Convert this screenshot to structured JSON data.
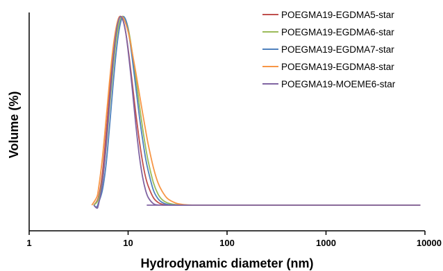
{
  "chart_data": {
    "type": "line",
    "xlabel": "Hydrodynamic diameter (nm)",
    "ylabel": "Volume (%)",
    "x_scale": "log",
    "xlim": [
      1,
      10000
    ],
    "x_ticks": [
      1,
      10,
      100,
      1000,
      10000
    ],
    "x_tick_labels": [
      "1",
      "10",
      "100",
      "1000",
      "10000"
    ],
    "ylim": [
      0,
      1.08
    ],
    "y_ticks_shown": false,
    "grid": false,
    "legend_position": "top-right",
    "series": [
      {
        "name": "POEGMA19-EGDMA5-star",
        "color": "#c0504d",
        "x": [
          4.5,
          5.0,
          5.5,
          6.0,
          6.5,
          7.0,
          7.5,
          8.0,
          8.5,
          9.0,
          9.5,
          10.0,
          10.5,
          11.0,
          12.0,
          13.0,
          14.0,
          15.0,
          16.0,
          18.0,
          20.0,
          22.0,
          25.0,
          30.0,
          35.0,
          9000.0
        ],
        "y": [
          0.0,
          0.04,
          0.17,
          0.38,
          0.6,
          0.79,
          0.92,
          0.99,
          1.0,
          0.97,
          0.91,
          0.83,
          0.74,
          0.65,
          0.48,
          0.34,
          0.23,
          0.15,
          0.1,
          0.04,
          0.015,
          0.005,
          0.001,
          0.0,
          0.0,
          0.0
        ]
      },
      {
        "name": "POEGMA19-EGDMA6-star",
        "color": "#9bbb59",
        "x": [
          4.5,
          5.0,
          5.5,
          6.0,
          6.5,
          7.0,
          7.5,
          8.0,
          8.5,
          9.0,
          9.5,
          10.0,
          10.5,
          11.0,
          12.0,
          13.0,
          14.0,
          15.0,
          16.0,
          18.0,
          20.0,
          22.0,
          25.0,
          30.0,
          35.0,
          40.0,
          50.0,
          9000.0
        ],
        "y": [
          0.0,
          0.03,
          0.13,
          0.31,
          0.52,
          0.71,
          0.86,
          0.95,
          0.995,
          1.0,
          0.98,
          0.94,
          0.88,
          0.81,
          0.67,
          0.53,
          0.41,
          0.31,
          0.23,
          0.12,
          0.06,
          0.03,
          0.012,
          0.003,
          0.001,
          0.0,
          0.0,
          0.0
        ]
      },
      {
        "name": "POEGMA19-EGDMA7-star",
        "color": "#4f81bd",
        "x": [
          4.5,
          4.8,
          5.0,
          5.5,
          6.0,
          6.5,
          7.0,
          7.5,
          8.0,
          8.5,
          9.0,
          9.5,
          10.0,
          10.5,
          11.0,
          12.0,
          13.0,
          14.0,
          15.0,
          16.0,
          18.0,
          20.0,
          22.0,
          25.0,
          30.0,
          35.0,
          40.0,
          9000.0
        ],
        "y": [
          0.0,
          -0.01,
          0.01,
          0.08,
          0.22,
          0.42,
          0.62,
          0.79,
          0.91,
          0.98,
          1.0,
          0.98,
          0.93,
          0.86,
          0.78,
          0.62,
          0.47,
          0.35,
          0.25,
          0.18,
          0.08,
          0.035,
          0.015,
          0.004,
          0.001,
          0.0,
          0.0,
          0.0
        ]
      },
      {
        "name": "POEGMA19-EGDMA8-star",
        "color": "#f79646",
        "x": [
          4.3,
          4.8,
          5.0,
          5.5,
          6.0,
          6.5,
          7.0,
          7.5,
          8.0,
          8.5,
          9.0,
          9.5,
          10.0,
          10.5,
          11.0,
          12.0,
          13.0,
          14.0,
          15.0,
          16.0,
          18.0,
          20.0,
          22.0,
          25.0,
          30.0,
          35.0,
          40.0,
          50.0,
          60.0,
          70.0,
          9000.0
        ],
        "y": [
          0.0,
          0.04,
          0.08,
          0.25,
          0.46,
          0.66,
          0.82,
          0.93,
          0.99,
          1.0,
          0.99,
          0.96,
          0.92,
          0.87,
          0.81,
          0.7,
          0.59,
          0.49,
          0.4,
          0.32,
          0.2,
          0.12,
          0.075,
          0.035,
          0.012,
          0.004,
          0.0015,
          0.0,
          0.0,
          0.0,
          0.0
        ]
      },
      {
        "name": "POEGMA19-MOEME6-star",
        "color": "#8064a2",
        "x": [
          4.5,
          4.8,
          5.0,
          5.5,
          6.0,
          6.5,
          7.0,
          7.5,
          8.0,
          8.5,
          9.0,
          9.5,
          10.0,
          10.5,
          11.0,
          12.0,
          13.0,
          14.0,
          15.0,
          16.0,
          18.0,
          20.0,
          22.0,
          25.0,
          9000.0
        ],
        "y": [
          0.0,
          -0.015,
          0.0,
          0.12,
          0.32,
          0.55,
          0.75,
          0.9,
          0.98,
          1.0,
          0.97,
          0.91,
          0.82,
          0.72,
          0.62,
          0.42,
          0.26,
          0.15,
          0.08,
          0.04,
          0.008,
          0.001,
          0.0,
          0.0,
          0.0
        ]
      }
    ]
  }
}
